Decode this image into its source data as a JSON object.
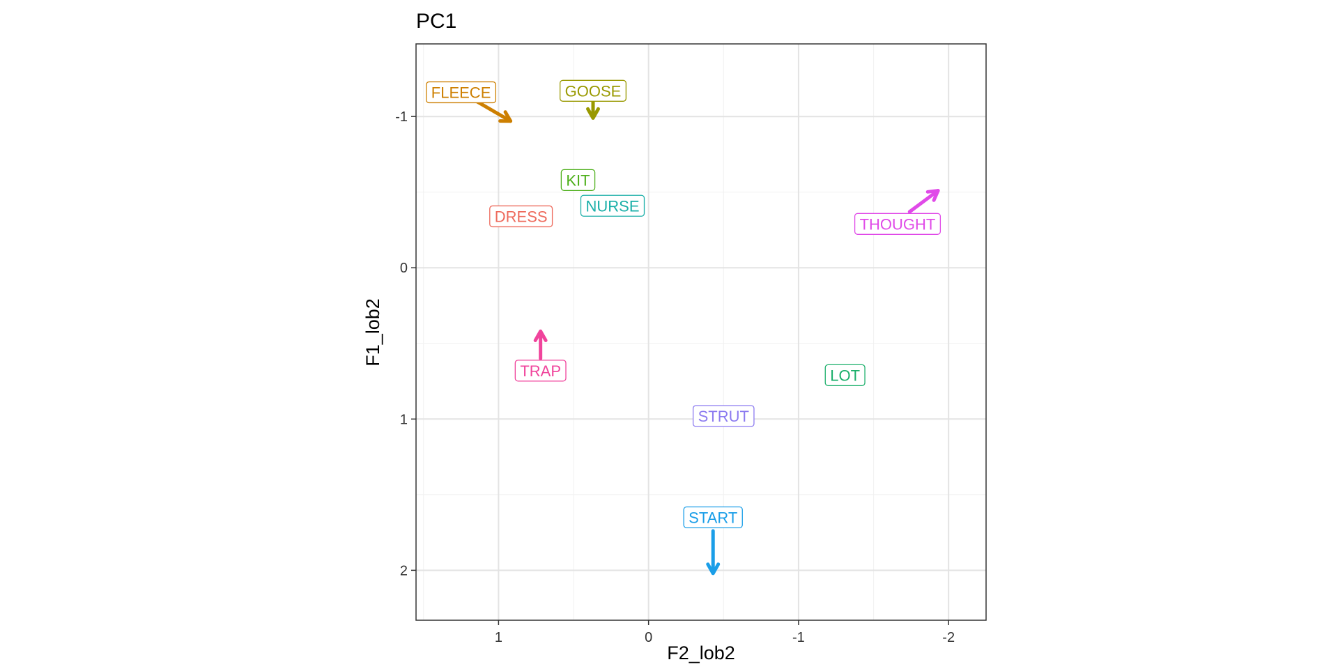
{
  "chart_data": {
    "type": "scatter",
    "title": "PC1",
    "xlabel": "F2_lob2",
    "ylabel": "F1_lob2",
    "x_reversed": true,
    "y_reversed": true,
    "xlim": [
      1.55,
      -2.25
    ],
    "ylim": [
      -1.48,
      2.33
    ],
    "xticks": [
      1,
      0,
      -1,
      -2
    ],
    "xtick_labels": [
      "1",
      "0",
      "-1",
      "-2"
    ],
    "yticks": [
      -1,
      0,
      1,
      2
    ],
    "ytick_labels": [
      "-1",
      "0",
      "1",
      "2"
    ],
    "grid": true,
    "points": [
      {
        "label": "FLEECE",
        "color": "#CD7F00",
        "x": 1.25,
        "y": -1.16,
        "arrow_to": {
          "x": 0.92,
          "y": -0.97
        }
      },
      {
        "label": "GOOSE",
        "color": "#999900",
        "x": 0.37,
        "y": -1.17,
        "arrow_to": {
          "x": 0.37,
          "y": -0.99
        }
      },
      {
        "label": "KIT",
        "color": "#4DAF1A",
        "x": 0.47,
        "y": -0.58
      },
      {
        "label": "NURSE",
        "color": "#1AAFA8",
        "x": 0.24,
        "y": -0.41
      },
      {
        "label": "DRESS",
        "color": "#EE6A5C",
        "x": 0.85,
        "y": -0.34
      },
      {
        "label": "THOUGHT",
        "color": "#E04AE8",
        "x": -1.66,
        "y": -0.29,
        "arrow_from": {
          "x": -1.74,
          "y": -0.37
        },
        "arrow_to": {
          "x": -1.93,
          "y": -0.51
        }
      },
      {
        "label": "TRAP",
        "color": "#F0449C",
        "x": 0.72,
        "y": 0.68,
        "arrow_from": {
          "x": 0.72,
          "y": 0.6
        },
        "arrow_to": {
          "x": 0.72,
          "y": 0.42
        }
      },
      {
        "label": "LOT",
        "color": "#1AAF6A",
        "x": -1.31,
        "y": 0.71
      },
      {
        "label": "STRUT",
        "color": "#8C7BF0",
        "x": -0.5,
        "y": 0.98
      },
      {
        "label": "START",
        "color": "#1A9EE8",
        "x": -0.43,
        "y": 1.65,
        "arrow_from": {
          "x": -0.43,
          "y": 1.74
        },
        "arrow_to": {
          "x": -0.43,
          "y": 2.02
        }
      }
    ]
  }
}
